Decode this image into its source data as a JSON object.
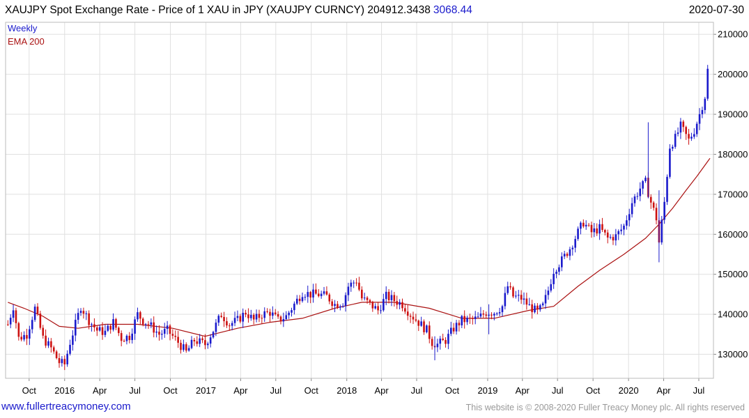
{
  "header": {
    "title": "XAUJPY Spot Exchange Rate - Price of 1 XAU in JPY (XAUJPY CURNCY) 204912.3438",
    "change": "3068.44",
    "date": "2020-07-30"
  },
  "footer": {
    "link": "www.fullertreacymoney.com",
    "copyright": "This website is © 2008-2020 Fuller Treacy Money plc. All rights reserved"
  },
  "colors": {
    "up_candle": "#1a1acc",
    "down_candle": "#cc1111",
    "ema_line": "#aa1111",
    "grid": "#e0e0e0",
    "frame": "#bbbbbb",
    "legend_weekly": "#1a1acc",
    "legend_ema": "#aa1111"
  },
  "chart_data": {
    "type": "candlestick",
    "frequency": "weekly",
    "legend": [
      "Weekly",
      "EMA 200"
    ],
    "y_axis": {
      "position": "right",
      "ylim": [
        124000,
        213000
      ],
      "ticks": [
        130000,
        140000,
        150000,
        160000,
        170000,
        180000,
        190000,
        200000,
        210000
      ]
    },
    "x_axis": {
      "ticks": [
        {
          "label": "Oct",
          "date": "2015-10-01"
        },
        {
          "label": "2016",
          "date": "2016-01-01"
        },
        {
          "label": "Apr",
          "date": "2016-04-01"
        },
        {
          "label": "Jul",
          "date": "2016-07-01"
        },
        {
          "label": "Oct",
          "date": "2016-10-01"
        },
        {
          "label": "2017",
          "date": "2017-01-01"
        },
        {
          "label": "Apr",
          "date": "2017-04-01"
        },
        {
          "label": "Jul",
          "date": "2017-07-01"
        },
        {
          "label": "Oct",
          "date": "2017-10-01"
        },
        {
          "label": "2018",
          "date": "2018-01-01"
        },
        {
          "label": "Apr",
          "date": "2018-04-01"
        },
        {
          "label": "Jul",
          "date": "2018-07-01"
        },
        {
          "label": "Oct",
          "date": "2018-10-01"
        },
        {
          "label": "2019",
          "date": "2019-01-01"
        },
        {
          "label": "Apr",
          "date": "2019-04-01"
        },
        {
          "label": "Jul",
          "date": "2019-07-01"
        },
        {
          "label": "Oct",
          "date": "2019-10-01"
        },
        {
          "label": "2020",
          "date": "2020-01-01"
        },
        {
          "label": "Apr",
          "date": "2020-04-01"
        },
        {
          "label": "Jul",
          "date": "2020-07-01"
        }
      ]
    },
    "close_path": [
      [
        "2015-08-07",
        137500
      ],
      [
        "2015-08-21",
        142000
      ],
      [
        "2015-09-04",
        134000
      ],
      [
        "2015-09-25",
        135000
      ],
      [
        "2015-10-16",
        141500
      ],
      [
        "2015-11-06",
        134000
      ],
      [
        "2015-11-27",
        131500
      ],
      [
        "2015-12-18",
        128000
      ],
      [
        "2016-01-01",
        127500
      ],
      [
        "2016-01-15",
        133000
      ],
      [
        "2016-02-12",
        142000
      ],
      [
        "2016-03-04",
        138500
      ],
      [
        "2016-03-25",
        136000
      ],
      [
        "2016-04-15",
        135500
      ],
      [
        "2016-05-06",
        138000
      ],
      [
        "2016-05-27",
        134000
      ],
      [
        "2016-06-17",
        134500
      ],
      [
        "2016-07-08",
        140000
      ],
      [
        "2016-07-22",
        138500
      ],
      [
        "2016-08-12",
        137000
      ],
      [
        "2016-09-02",
        135000
      ],
      [
        "2016-09-23",
        136000
      ],
      [
        "2016-10-07",
        134500
      ],
      [
        "2016-10-21",
        133000
      ],
      [
        "2016-11-11",
        130500
      ],
      [
        "2016-12-02",
        133500
      ],
      [
        "2016-12-30",
        132500
      ],
      [
        "2017-01-20",
        136000
      ],
      [
        "2017-02-10",
        140000
      ],
      [
        "2017-03-03",
        137500
      ],
      [
        "2017-03-24",
        138500
      ],
      [
        "2017-04-14",
        140500
      ],
      [
        "2017-05-05",
        138500
      ],
      [
        "2017-05-26",
        140000
      ],
      [
        "2017-06-16",
        140500
      ],
      [
        "2017-07-07",
        138500
      ],
      [
        "2017-07-28",
        139500
      ],
      [
        "2017-08-18",
        142500
      ],
      [
        "2017-09-08",
        145500
      ],
      [
        "2017-09-29",
        145000
      ],
      [
        "2017-10-20",
        145000
      ],
      [
        "2017-11-10",
        144500
      ],
      [
        "2017-12-01",
        142500
      ],
      [
        "2017-12-22",
        143000
      ],
      [
        "2018-01-05",
        147000
      ],
      [
        "2018-01-26",
        148500
      ],
      [
        "2018-02-09",
        144000
      ],
      [
        "2018-03-02",
        142500
      ],
      [
        "2018-03-23",
        141000
      ],
      [
        "2018-04-13",
        144500
      ],
      [
        "2018-05-04",
        143500
      ],
      [
        "2018-05-25",
        142500
      ],
      [
        "2018-06-15",
        140000
      ],
      [
        "2018-07-06",
        138000
      ],
      [
        "2018-07-27",
        136000
      ],
      [
        "2018-08-10",
        133000
      ],
      [
        "2018-08-24",
        132500
      ],
      [
        "2018-09-14",
        133500
      ],
      [
        "2018-10-05",
        136500
      ],
      [
        "2018-10-26",
        138500
      ],
      [
        "2018-11-16",
        138500
      ],
      [
        "2018-12-07",
        139000
      ],
      [
        "2018-12-28",
        140500
      ],
      [
        "2019-01-18",
        140500
      ],
      [
        "2019-02-08",
        142000
      ],
      [
        "2019-02-22",
        147000
      ],
      [
        "2019-03-08",
        144500
      ],
      [
        "2019-03-29",
        144000
      ],
      [
        "2019-04-19",
        142000
      ],
      [
        "2019-05-10",
        140500
      ],
      [
        "2019-05-24",
        142000
      ],
      [
        "2019-06-07",
        146000
      ],
      [
        "2019-06-21",
        151000
      ],
      [
        "2019-07-12",
        153500
      ],
      [
        "2019-08-02",
        156500
      ],
      [
        "2019-08-23",
        160500
      ],
      [
        "2019-09-06",
        163000
      ],
      [
        "2019-09-27",
        160500
      ],
      [
        "2019-10-18",
        161500
      ],
      [
        "2019-11-08",
        159000
      ],
      [
        "2019-11-29",
        159500
      ],
      [
        "2019-12-20",
        162000
      ],
      [
        "2020-01-10",
        168000
      ],
      [
        "2020-01-31",
        171500
      ],
      [
        "2020-02-14",
        173000
      ],
      [
        "2020-02-28",
        168000
      ],
      [
        "2020-03-13",
        164000
      ],
      [
        "2020-03-20",
        158000
      ],
      [
        "2020-04-03",
        168000
      ],
      [
        "2020-04-17",
        182000
      ],
      [
        "2020-05-01",
        184000
      ],
      [
        "2020-05-15",
        187000
      ],
      [
        "2020-06-05",
        183500
      ],
      [
        "2020-06-19",
        186000
      ],
      [
        "2020-07-03",
        190000
      ],
      [
        "2020-07-17",
        194500
      ],
      [
        "2020-07-24",
        201000
      ],
      [
        "2020-07-30",
        204912
      ]
    ],
    "ema_path": [
      [
        "2015-08-07",
        143000
      ],
      [
        "2015-09-18",
        141500
      ],
      [
        "2015-11-06",
        139500
      ],
      [
        "2015-12-18",
        137000
      ],
      [
        "2016-02-05",
        136500
      ],
      [
        "2016-04-15",
        137500
      ],
      [
        "2016-07-08",
        137500
      ],
      [
        "2016-10-07",
        136500
      ],
      [
        "2016-12-30",
        134500
      ],
      [
        "2017-03-24",
        136500
      ],
      [
        "2017-06-16",
        138000
      ],
      [
        "2017-09-08",
        139000
      ],
      [
        "2017-12-01",
        141500
      ],
      [
        "2018-02-09",
        143000
      ],
      [
        "2018-05-04",
        143000
      ],
      [
        "2018-08-03",
        141500
      ],
      [
        "2018-10-26",
        139000
      ],
      [
        "2019-01-18",
        139000
      ],
      [
        "2019-04-19",
        141000
      ],
      [
        "2019-06-21",
        142000
      ],
      [
        "2019-08-23",
        147000
      ],
      [
        "2019-10-18",
        151000
      ],
      [
        "2019-12-20",
        155000
      ],
      [
        "2020-02-14",
        159000
      ],
      [
        "2020-03-20",
        162500
      ],
      [
        "2020-04-24",
        166500
      ],
      [
        "2020-05-29",
        171000
      ],
      [
        "2020-06-26",
        174500
      ],
      [
        "2020-07-30",
        179000
      ]
    ],
    "spikes": [
      [
        "2020-03-20",
        153000,
        171000
      ],
      [
        "2020-02-21",
        169000,
        188000
      ],
      [
        "2019-01-04",
        135000,
        142500
      ],
      [
        "2018-08-17",
        128500,
        134500
      ]
    ]
  }
}
